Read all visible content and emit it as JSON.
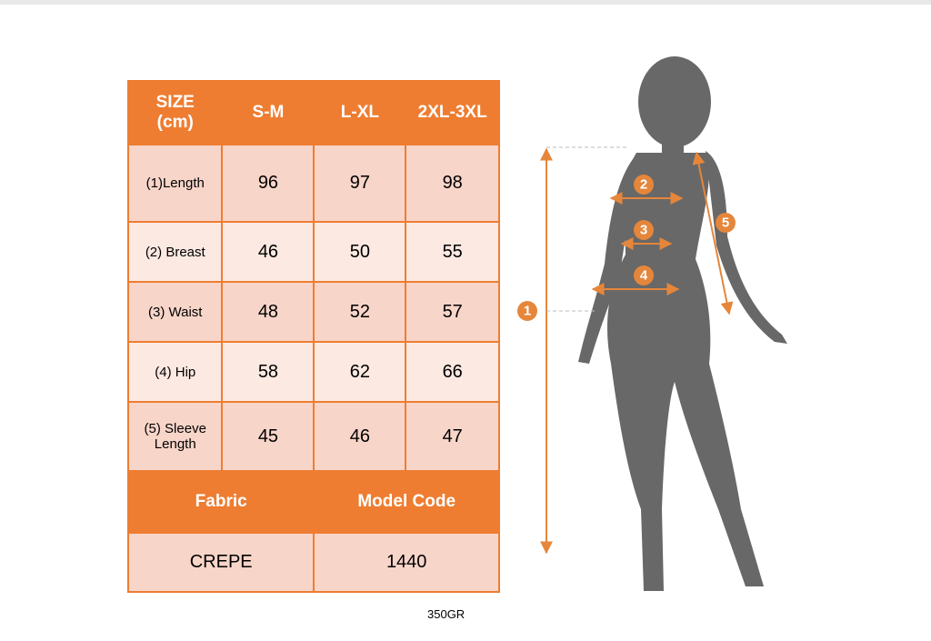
{
  "table": {
    "header": [
      "SIZE\n(cm)",
      "S-M",
      "L-XL",
      "2XL-3XL"
    ],
    "rows": [
      [
        "(1)Length",
        96,
        97,
        98
      ],
      [
        "(2) Breast",
        46,
        50,
        55
      ],
      [
        "(3) Waist",
        48,
        52,
        57
      ],
      [
        "(4) Hip",
        58,
        62,
        66
      ],
      [
        "(5) Sleeve\nLength",
        45,
        46,
        47
      ]
    ],
    "footer_header": [
      "Fabric",
      "Model Code"
    ],
    "footer_row": [
      "CREPE",
      1440
    ]
  },
  "note": "350GR",
  "diagram": {
    "markers": [
      "1",
      "2",
      "3",
      "4",
      "5"
    ]
  }
}
